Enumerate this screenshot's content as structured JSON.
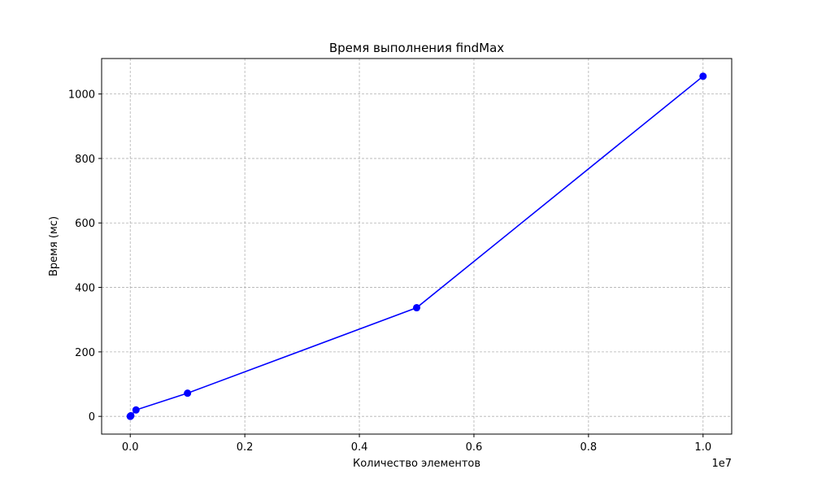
{
  "chart_data": {
    "type": "line",
    "title": "Время выполнения findMax",
    "xlabel": "Количество элементов",
    "ylabel": "Время (мс)",
    "x_offset_text": "1e7",
    "xlim": [
      -0.05,
      1.05
    ],
    "ylim": [
      -55,
      1110
    ],
    "x_scale_factor": 10000000,
    "x_ticks": [
      0.0,
      0.2,
      0.4,
      0.6,
      0.8,
      1.0
    ],
    "x_tick_labels": [
      "0.0",
      "0.2",
      "0.4",
      "0.6",
      "0.8",
      "1.0"
    ],
    "y_ticks": [
      0,
      200,
      400,
      600,
      800,
      1000
    ],
    "y_tick_labels": [
      "0",
      "200",
      "400",
      "600",
      "800",
      "1000"
    ],
    "grid": true,
    "series": [
      {
        "color": "#0000ff",
        "marker": "circle",
        "x": [
          100,
          1000,
          10000,
          100000,
          1000000,
          5000000,
          10000000
        ],
        "y": [
          0.02,
          0.2,
          2,
          20,
          72,
          337,
          1055
        ]
      }
    ]
  }
}
